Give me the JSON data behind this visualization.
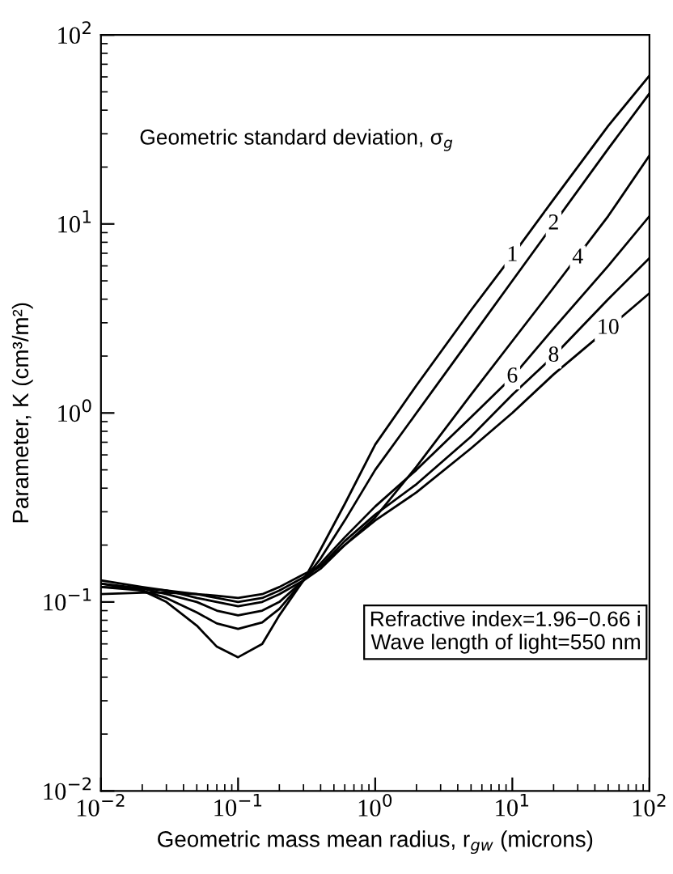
{
  "chart_data": {
    "type": "line",
    "log": "xy",
    "xlabel": "Geometric mass mean radius, r$_{gw}$ (microns)",
    "ylabel": "Parameter, K (cm³/m²)",
    "x": [
      0.01,
      0.02,
      0.03,
      0.05,
      0.07,
      0.1,
      0.15,
      0.2,
      0.3,
      0.4,
      0.6,
      1,
      2,
      5,
      10,
      20,
      50,
      100
    ],
    "series": [
      {
        "color": "#000000",
        "values": [
          0.12,
          0.115,
          0.1,
          0.075,
          0.058,
          0.051,
          0.06,
          0.085,
          0.13,
          0.19,
          0.33,
          0.68,
          1.4,
          3.5,
          6.8,
          13.5,
          33,
          61
        ]
      },
      {
        "color": "#000000",
        "values": [
          0.125,
          0.115,
          0.105,
          0.088,
          0.077,
          0.072,
          0.078,
          0.092,
          0.13,
          0.17,
          0.27,
          0.5,
          1.0,
          2.5,
          5,
          10,
          25,
          49
        ]
      },
      {
        "color": "#000000",
        "values": [
          0.125,
          0.118,
          0.11,
          0.1,
          0.09,
          0.085,
          0.09,
          0.1,
          0.13,
          0.15,
          0.2,
          0.28,
          0.52,
          1.25,
          2.4,
          4.6,
          11,
          23
        ]
      },
      {
        "color": "#000000",
        "values": [
          0.13,
          0.12,
          0.115,
          0.105,
          0.1,
          0.095,
          0.1,
          0.11,
          0.13,
          0.16,
          0.22,
          0.32,
          0.5,
          0.95,
          1.55,
          2.8,
          6,
          11
        ]
      },
      {
        "color": "#000000",
        "values": [
          0.12,
          0.118,
          0.115,
          0.11,
          0.105,
          0.1,
          0.105,
          0.115,
          0.135,
          0.155,
          0.21,
          0.29,
          0.42,
          0.75,
          1.25,
          2.0,
          4.0,
          6.6
        ]
      },
      {
        "color": "#000000",
        "values": [
          0.11,
          0.112,
          0.112,
          0.11,
          0.108,
          0.105,
          0.11,
          0.12,
          0.14,
          0.155,
          0.2,
          0.27,
          0.38,
          0.65,
          1.0,
          1.6,
          2.8,
          4.3
        ]
      }
    ],
    "xlim": [
      0.01,
      100
    ],
    "ylim": [
      0.01,
      100
    ],
    "xticks": [
      {
        "value": 0.01,
        "label": "10$^{−2}$"
      },
      {
        "value": 0.1,
        "label": "10$^{−1}$"
      },
      {
        "value": 1,
        "label": "10$^{0}$"
      },
      {
        "value": 10,
        "label": "10$^{1}$"
      },
      {
        "value": 100,
        "label": "10$^{2}$"
      }
    ],
    "yticks": [
      {
        "value": 0.01,
        "label": "10$^{−2}$"
      },
      {
        "value": 0.1,
        "label": "10$^{−1}$"
      },
      {
        "value": 1,
        "label": "10$^{0}$"
      },
      {
        "value": 10,
        "label": "10$^{1}$"
      },
      {
        "value": 100,
        "label": "10$^{2}$"
      }
    ],
    "annotations": [
      "Geometric standard deviation, σ$_{g}$",
      "Refractive index=1.96−0.66 i",
      "Wave length of light=550 nm",
      {
        "text": "1",
        "x": 10,
        "y": 6.8
      },
      {
        "text": "2",
        "x": 20,
        "y": 10
      },
      {
        "text": "4",
        "x": 30,
        "y": 6.6
      },
      {
        "text": "6",
        "x": 10,
        "y": 1.55
      },
      {
        "text": "8",
        "x": 20,
        "y": 2.0
      },
      {
        "text": "10",
        "x": 50,
        "y": 2.8
      }
    ]
  }
}
